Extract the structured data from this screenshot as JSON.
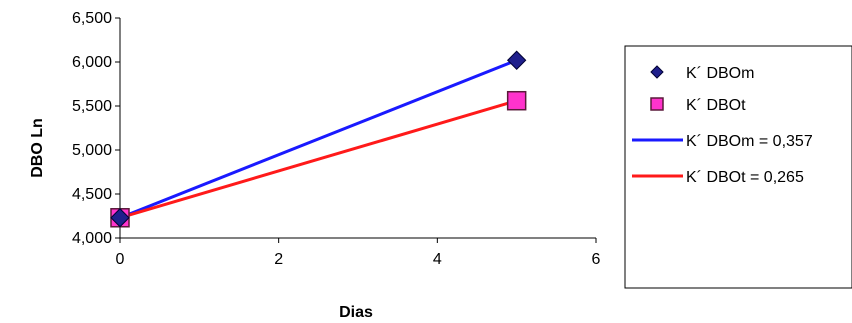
{
  "chart_data": {
    "type": "scatter",
    "xlabel": "Dias",
    "ylabel": "DBO Ln",
    "xlim": [
      0,
      6
    ],
    "ylim": [
      4.0,
      6.5
    ],
    "x_ticks": [
      0,
      2,
      4,
      6
    ],
    "x_tick_labels": [
      "0",
      "2",
      "4",
      "6"
    ],
    "y_ticks": [
      4.0,
      4.5,
      5.0,
      5.5,
      6.0,
      6.5
    ],
    "y_tick_labels": [
      "4,000",
      "4,500",
      "5,000",
      "5,500",
      "6,000",
      "6,500"
    ],
    "grid": false,
    "legend_position": "right",
    "series": [
      {
        "name": "K´ DBOm",
        "kind": "points",
        "marker": "diamond",
        "color": "#1f1f8c",
        "x": [
          0,
          5
        ],
        "y": [
          4.23,
          6.02
        ]
      },
      {
        "name": "K´ DBOt",
        "kind": "points",
        "marker": "square",
        "color": "#ff33cc",
        "x": [
          0,
          5
        ],
        "y": [
          4.23,
          5.56
        ]
      },
      {
        "name": "K´ DBOm = 0,357",
        "kind": "line",
        "color": "#1a1aff",
        "x": [
          0,
          5
        ],
        "y": [
          4.23,
          6.02
        ]
      },
      {
        "name": "K´ DBOt = 0,265",
        "kind": "line",
        "color": "#ff1a1a",
        "x": [
          0,
          5
        ],
        "y": [
          4.23,
          5.56
        ]
      }
    ]
  }
}
